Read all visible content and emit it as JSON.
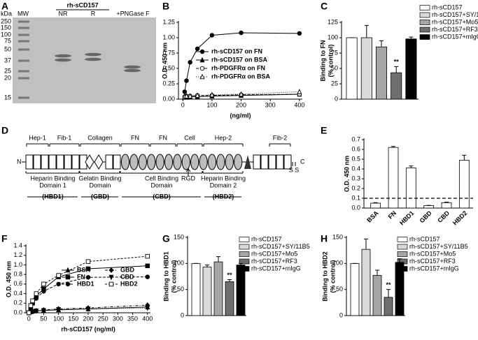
{
  "gel": {
    "panel": "A",
    "title": "rh-sCD157",
    "unit": "kDa",
    "lanes": [
      "MW",
      "NR",
      "R",
      "+PNGase F"
    ],
    "markers": [
      250,
      150,
      100,
      75,
      50,
      37,
      25,
      20,
      15
    ]
  },
  "diagram": {
    "panel": "D",
    "modules": [
      "Hep-1",
      "Fib-1",
      "Collagen",
      "FN",
      "FN",
      "Cell",
      "Hep-2",
      "Fib-2"
    ],
    "n_term": "N",
    "c_term": "C",
    "site": "RGD",
    "disulfide": "S S",
    "domains": [
      {
        "lines": [
          "Heparin Binding",
          "Domain 1"
        ],
        "abbr": "(HBD1)"
      },
      {
        "lines": [
          "Gelatin Binding",
          "Domain"
        ],
        "abbr": "(GBD)"
      },
      {
        "lines": [
          "Cell Binding",
          "Domain"
        ],
        "abbr": "(CBD)"
      },
      {
        "lines": [
          "Heparin Binding",
          "Domain 2"
        ],
        "abbr": "(HBD2)"
      }
    ]
  },
  "chart_data": [
    {
      "panel": "B",
      "type": "line",
      "ylabel": "O.D. 450 nm",
      "xlabel": "(ng/ml)",
      "xlim": [
        -15,
        410
      ],
      "xticks": [
        0,
        100,
        200,
        300,
        400
      ],
      "ylim": [
        0,
        1.25
      ],
      "yticks": [
        {
          "value": 0,
          "label": "0.00"
        },
        0.25,
        {
          "value": 0.5,
          "label": "0.50"
        },
        0.75,
        {
          "value": 1,
          "label": "1.00"
        },
        1.25
      ],
      "x": [
        6.25,
        12.5,
        25,
        50,
        100,
        200,
        400
      ],
      "series": [
        {
          "name": "rh-sCD157 on FN",
          "color": "#000000",
          "marker": "circle",
          "filled": true,
          "dash": "none",
          "values": [
            0.12,
            0.3,
            0.6,
            0.82,
            1.04,
            1.08,
            1.07
          ]
        },
        {
          "name": "rh-sCD157 on BSA",
          "color": "#000000",
          "marker": "triangle",
          "filled": true,
          "dash": "none",
          "values": [
            0.03,
            0.03,
            0.04,
            0.04,
            0.05,
            0.06,
            0.08
          ]
        },
        {
          "name": "rh-PDGFRα on FN",
          "color": "#000000",
          "marker": "circle",
          "filled": false,
          "dash": "4 2",
          "values": [
            0.04,
            0.05,
            0.05,
            0.06,
            0.06,
            0.07,
            0.08
          ]
        },
        {
          "name": "rh-PDGFRα on BSA",
          "color": "#000000",
          "marker": "triangle",
          "filled": false,
          "dash": "1 2",
          "values": [
            0.04,
            0.05,
            0.05,
            0.06,
            0.07,
            0.08,
            0.12
          ]
        }
      ]
    },
    {
      "panel": "C",
      "type": "bar",
      "ylabel": [
        "Binding to FN",
        "(% control)"
      ],
      "ylim": [
        0,
        125
      ],
      "yticks": [
        0,
        25,
        50,
        75,
        100,
        125
      ],
      "series": [
        {
          "name": "rh-sCD157",
          "color": "#ffffff",
          "values": [
            100
          ],
          "errors": [
            0
          ]
        },
        {
          "name": "rh-sCD157+SY/11B5",
          "color": "#d9d9d9",
          "values": [
            100
          ],
          "errors": [
            20
          ]
        },
        {
          "name": "rh-sCD157+Mo5",
          "color": "#a6a6a6",
          "values": [
            85
          ],
          "errors": [
            10
          ]
        },
        {
          "name": "rh-sCD157+RF3",
          "color": "#6e6e6e",
          "values": [
            43
          ],
          "errors": [
            10
          ],
          "annotation": "**"
        },
        {
          "name": "rh-sCD157+mIgG",
          "color": "#000000",
          "values": [
            98
          ],
          "errors": [
            3
          ]
        }
      ]
    },
    {
      "panel": "E",
      "type": "bar",
      "ylabel": [
        "O.D. 450 nm"
      ],
      "ylim": [
        0,
        0.7
      ],
      "yticks": [
        {
          "value": 0,
          "label": "0.0"
        },
        0.1,
        0.2,
        0.3,
        0.4,
        0.5,
        0.6,
        0.7
      ],
      "categories": [
        "BSA",
        "FN",
        "HBD1",
        "GBD",
        "CBD",
        "HBD2"
      ],
      "values": [
        0.05,
        0.62,
        0.41,
        0.025,
        0.055,
        0.49
      ],
      "errors": [
        0.005,
        0.01,
        0.02,
        0.003,
        0.006,
        0.05
      ],
      "color": "#ffffff",
      "reference_line": 0.1
    },
    {
      "panel": "F",
      "type": "line",
      "ylabel": "O.D. 450 nm",
      "xlabel": "rh-sCD157 (ng/ml)",
      "xlim": [
        -10,
        410
      ],
      "xticks": [
        0,
        50,
        100,
        150,
        200,
        250,
        300,
        350,
        400
      ],
      "ylim": [
        0,
        1.4
      ],
      "yticks": [
        {
          "value": 0,
          "label": "0.0"
        },
        0.2,
        0.4,
        0.6,
        0.8,
        {
          "value": 1,
          "label": "1.0"
        },
        1.2,
        1.4
      ],
      "x": [
        0,
        6.25,
        12.5,
        25,
        50,
        100,
        200,
        400
      ],
      "series": [
        {
          "name": "BSA",
          "color": "#000000",
          "marker": "triangle",
          "filled": true,
          "dash": "none",
          "values": [
            0,
            0.02,
            0.03,
            0.04,
            0.05,
            0.06,
            0.08,
            0.12
          ]
        },
        {
          "name": "FN",
          "color": "#000000",
          "marker": "square",
          "filled": true,
          "dash": "none",
          "values": [
            0,
            0.1,
            0.2,
            0.35,
            0.5,
            0.75,
            0.92,
            0.98
          ]
        },
        {
          "name": "HBD1",
          "color": "#000000",
          "marker": "circle",
          "filled": true,
          "dash": "4 2",
          "values": [
            0,
            0.1,
            0.2,
            0.3,
            0.45,
            0.6,
            0.74,
            0.75
          ]
        },
        {
          "name": "GBD",
          "color": "#000000",
          "marker": "diamond",
          "filled": true,
          "dash": "4 2 1 2",
          "values": [
            0,
            0.02,
            0.03,
            0.04,
            0.06,
            0.08,
            0.1,
            0.16
          ]
        },
        {
          "name": "CBD",
          "color": "#000000",
          "marker": "triangle-down",
          "filled": true,
          "dash": "1 2",
          "values": [
            0,
            0.02,
            0.03,
            0.04,
            0.05,
            0.07,
            0.08,
            0.1
          ]
        },
        {
          "name": "HBD2",
          "color": "#000000",
          "marker": "square",
          "filled": false,
          "dash": "3 2",
          "values": [
            0,
            0.15,
            0.25,
            0.4,
            0.6,
            0.78,
            1.07,
            1.18
          ]
        }
      ]
    },
    {
      "panel": "G",
      "type": "bar",
      "ylabel": [
        "Binding to HBD1",
        "(% control)"
      ],
      "ylim": [
        0,
        150
      ],
      "yticks": [
        0,
        50,
        100,
        150
      ],
      "series": [
        {
          "name": "rh-sCD157",
          "color": "#ffffff",
          "values": [
            100
          ],
          "errors": [
            0
          ]
        },
        {
          "name": "rh-sCD157+SY/11B5",
          "color": "#d9d9d9",
          "values": [
            93
          ],
          "errors": [
            4
          ]
        },
        {
          "name": "rh-sCD157+Mo5",
          "color": "#a6a6a6",
          "values": [
            103
          ],
          "errors": [
            10
          ]
        },
        {
          "name": "rh-sCD157+RF3",
          "color": "#6e6e6e",
          "values": [
            65
          ],
          "errors": [
            4
          ],
          "annotation": "**"
        },
        {
          "name": "rh-sCD157+mIgG",
          "color": "#000000",
          "values": [
            97
          ],
          "errors": [
            3
          ]
        }
      ]
    },
    {
      "panel": "H",
      "type": "bar",
      "ylabel": [
        "Binding to HBD2",
        "(% control)"
      ],
      "ylim": [
        0,
        150
      ],
      "yticks": [
        0,
        50,
        100,
        150
      ],
      "series": [
        {
          "name": "rh-sCD157",
          "color": "#ffffff",
          "values": [
            100
          ],
          "errors": [
            0
          ]
        },
        {
          "name": "rh-sCD157+SY/11B5",
          "color": "#d9d9d9",
          "values": [
            127
          ],
          "errors": [
            20
          ]
        },
        {
          "name": "rh-sCD157+Mo5",
          "color": "#a6a6a6",
          "values": [
            77
          ],
          "errors": [
            10
          ]
        },
        {
          "name": "rh-sCD157+RF3",
          "color": "#6e6e6e",
          "values": [
            35
          ],
          "errors": [
            15
          ],
          "annotation": "**"
        },
        {
          "name": "rh-sCD157+mIgG",
          "color": "#000000",
          "values": [
            102
          ],
          "errors": [
            7
          ]
        }
      ]
    }
  ]
}
